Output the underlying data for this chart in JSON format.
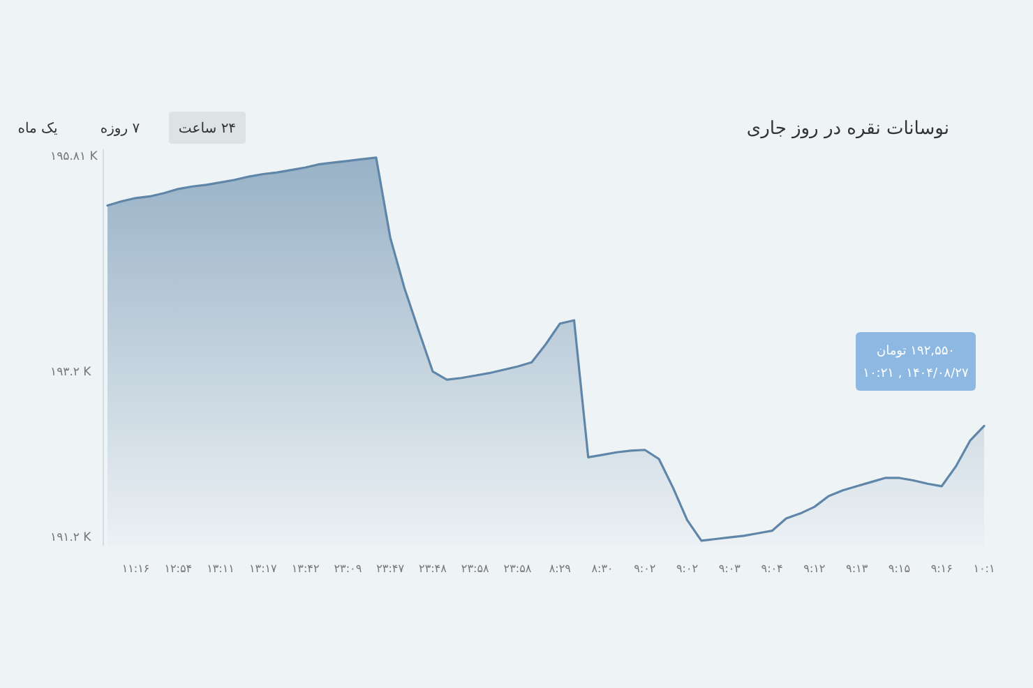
{
  "chart_data": {
    "type": "area",
    "title": "نوسانات نقره در روز جاری",
    "annotations": [
      "۲۴ ساعت",
      "۷ روزه",
      "یک ماه",
      "۱۹۲,۵۵۰ تومان",
      "۱۴۰۴/۰۸/۲۷ , ۱۰:۲۱"
    ],
    "categories": [
      null,
      null,
      "۱۱:۱۶",
      null,
      null,
      "۱۲:۵۴",
      null,
      null,
      "۱۳:۱۱",
      null,
      null,
      "۱۳:۱۷",
      null,
      null,
      "۱۳:۴۲",
      null,
      null,
      "۲۳:۰۹",
      null,
      null,
      "۲۳:۴۷",
      null,
      null,
      "۲۳:۴۸",
      null,
      null,
      "۲۳:۵۸",
      null,
      null,
      "۲۳:۵۸",
      null,
      null,
      "۸:۲۹",
      null,
      null,
      "۸:۳۰",
      null,
      null,
      "۹:۰۲",
      null,
      null,
      "۹:۰۲",
      null,
      null,
      "۹:۰۳",
      null,
      null,
      "۹:۰۴",
      null,
      null,
      "۹:۱۲",
      null,
      null,
      "۹:۱۳",
      null,
      null,
      "۹:۱۵",
      null,
      null,
      "۹:۱۶",
      null,
      null,
      "۱۰:۱"
    ],
    "series": [
      {
        "color": "#5f86a8",
        "values": [
          195.22,
          195.27,
          195.31,
          195.33,
          195.37,
          195.42,
          195.45,
          195.47,
          195.5,
          195.53,
          195.57,
          195.6,
          195.62,
          195.65,
          195.68,
          195.72,
          195.74,
          195.76,
          195.78,
          195.8,
          194.83,
          194.22,
          193.71,
          193.21,
          193.11,
          193.13,
          193.16,
          193.19,
          193.23,
          193.27,
          193.32,
          193.54,
          193.79,
          193.83,
          192.17,
          192.2,
          192.23,
          192.25,
          192.26,
          192.15,
          191.8,
          191.41,
          191.16,
          191.18,
          191.2,
          191.22,
          191.25,
          191.28,
          191.43,
          191.49,
          191.57,
          191.7,
          191.77,
          191.82,
          191.87,
          191.92,
          191.92,
          191.89,
          191.85,
          191.82,
          192.06,
          192.37,
          192.55
        ]
      }
    ],
    "ylim": [
      191.1,
      195.9
    ],
    "yticks": [
      {
        "value": 191.2,
        "label": "۱۹۱.۲ K"
      },
      {
        "value": 193.2,
        "label": "۱۹۳.۲ K"
      },
      {
        "value": 195.81,
        "label": "۱۹۵.۸۱ K"
      }
    ]
  }
}
